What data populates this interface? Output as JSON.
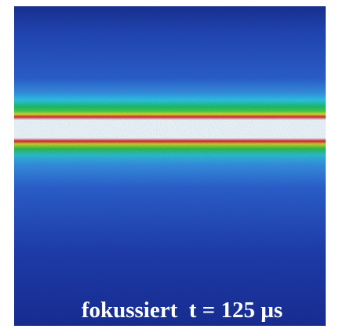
{
  "caption": "fokussiert  t = 125 µs"
}
